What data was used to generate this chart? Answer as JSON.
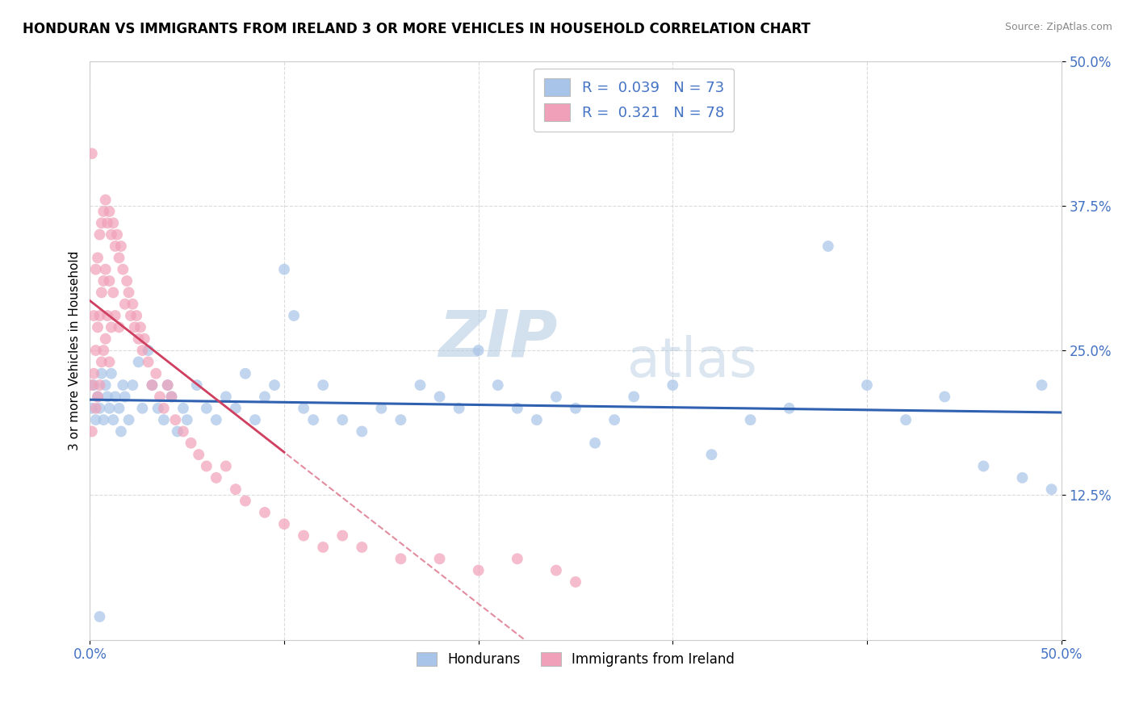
{
  "title": "HONDURAN VS IMMIGRANTS FROM IRELAND 3 OR MORE VEHICLES IN HOUSEHOLD CORRELATION CHART",
  "source": "Source: ZipAtlas.com",
  "ylabel": "3 or more Vehicles in Household",
  "xlim": [
    0.0,
    0.5
  ],
  "ylim": [
    0.0,
    0.5
  ],
  "honduran_R": 0.039,
  "honduran_N": 73,
  "ireland_R": 0.321,
  "ireland_N": 78,
  "honduran_color": "#a8c4e8",
  "ireland_color": "#f0a0b8",
  "line_honduran_color": "#3060b0",
  "line_ireland_color": "#d04060",
  "watermark_zip": "ZIP",
  "watermark_atlas": "atlas",
  "legend_hondurans": "Hondurans",
  "legend_ireland": "Immigrants from Ireland",
  "honduran_x": [
    0.001,
    0.002,
    0.003,
    0.004,
    0.005,
    0.006,
    0.007,
    0.008,
    0.009,
    0.01,
    0.011,
    0.012,
    0.013,
    0.015,
    0.016,
    0.017,
    0.018,
    0.02,
    0.022,
    0.025,
    0.027,
    0.03,
    0.032,
    0.035,
    0.038,
    0.04,
    0.042,
    0.045,
    0.048,
    0.05,
    0.055,
    0.06,
    0.065,
    0.07,
    0.075,
    0.08,
    0.085,
    0.09,
    0.095,
    0.1,
    0.105,
    0.11,
    0.115,
    0.12,
    0.13,
    0.14,
    0.15,
    0.16,
    0.17,
    0.18,
    0.19,
    0.2,
    0.21,
    0.22,
    0.23,
    0.24,
    0.25,
    0.26,
    0.27,
    0.28,
    0.3,
    0.32,
    0.34,
    0.36,
    0.38,
    0.4,
    0.42,
    0.44,
    0.46,
    0.48,
    0.49,
    0.495,
    0.005
  ],
  "honduran_y": [
    0.2,
    0.22,
    0.19,
    0.21,
    0.2,
    0.23,
    0.19,
    0.22,
    0.21,
    0.2,
    0.23,
    0.19,
    0.21,
    0.2,
    0.18,
    0.22,
    0.21,
    0.19,
    0.22,
    0.24,
    0.2,
    0.25,
    0.22,
    0.2,
    0.19,
    0.22,
    0.21,
    0.18,
    0.2,
    0.19,
    0.22,
    0.2,
    0.19,
    0.21,
    0.2,
    0.23,
    0.19,
    0.21,
    0.22,
    0.32,
    0.28,
    0.2,
    0.19,
    0.22,
    0.19,
    0.18,
    0.2,
    0.19,
    0.22,
    0.21,
    0.2,
    0.25,
    0.22,
    0.2,
    0.19,
    0.21,
    0.2,
    0.17,
    0.19,
    0.21,
    0.22,
    0.16,
    0.19,
    0.2,
    0.34,
    0.22,
    0.19,
    0.21,
    0.15,
    0.14,
    0.22,
    0.13,
    0.02
  ],
  "ireland_x": [
    0.001,
    0.001,
    0.002,
    0.002,
    0.003,
    0.003,
    0.003,
    0.004,
    0.004,
    0.004,
    0.005,
    0.005,
    0.005,
    0.006,
    0.006,
    0.006,
    0.007,
    0.007,
    0.007,
    0.008,
    0.008,
    0.008,
    0.009,
    0.009,
    0.01,
    0.01,
    0.01,
    0.011,
    0.011,
    0.012,
    0.012,
    0.013,
    0.013,
    0.014,
    0.015,
    0.015,
    0.016,
    0.017,
    0.018,
    0.019,
    0.02,
    0.021,
    0.022,
    0.023,
    0.024,
    0.025,
    0.026,
    0.027,
    0.028,
    0.03,
    0.032,
    0.034,
    0.036,
    0.038,
    0.04,
    0.042,
    0.044,
    0.048,
    0.052,
    0.056,
    0.06,
    0.065,
    0.07,
    0.075,
    0.08,
    0.09,
    0.1,
    0.11,
    0.12,
    0.13,
    0.14,
    0.16,
    0.18,
    0.2,
    0.22,
    0.24,
    0.25,
    0.001
  ],
  "ireland_y": [
    0.22,
    0.18,
    0.28,
    0.23,
    0.32,
    0.25,
    0.2,
    0.33,
    0.27,
    0.21,
    0.35,
    0.28,
    0.22,
    0.36,
    0.3,
    0.24,
    0.37,
    0.31,
    0.25,
    0.38,
    0.32,
    0.26,
    0.36,
    0.28,
    0.37,
    0.31,
    0.24,
    0.35,
    0.27,
    0.36,
    0.3,
    0.34,
    0.28,
    0.35,
    0.33,
    0.27,
    0.34,
    0.32,
    0.29,
    0.31,
    0.3,
    0.28,
    0.29,
    0.27,
    0.28,
    0.26,
    0.27,
    0.25,
    0.26,
    0.24,
    0.22,
    0.23,
    0.21,
    0.2,
    0.22,
    0.21,
    0.19,
    0.18,
    0.17,
    0.16,
    0.15,
    0.14,
    0.15,
    0.13,
    0.12,
    0.11,
    0.1,
    0.09,
    0.08,
    0.09,
    0.08,
    0.07,
    0.07,
    0.06,
    0.07,
    0.06,
    0.05,
    0.42
  ]
}
